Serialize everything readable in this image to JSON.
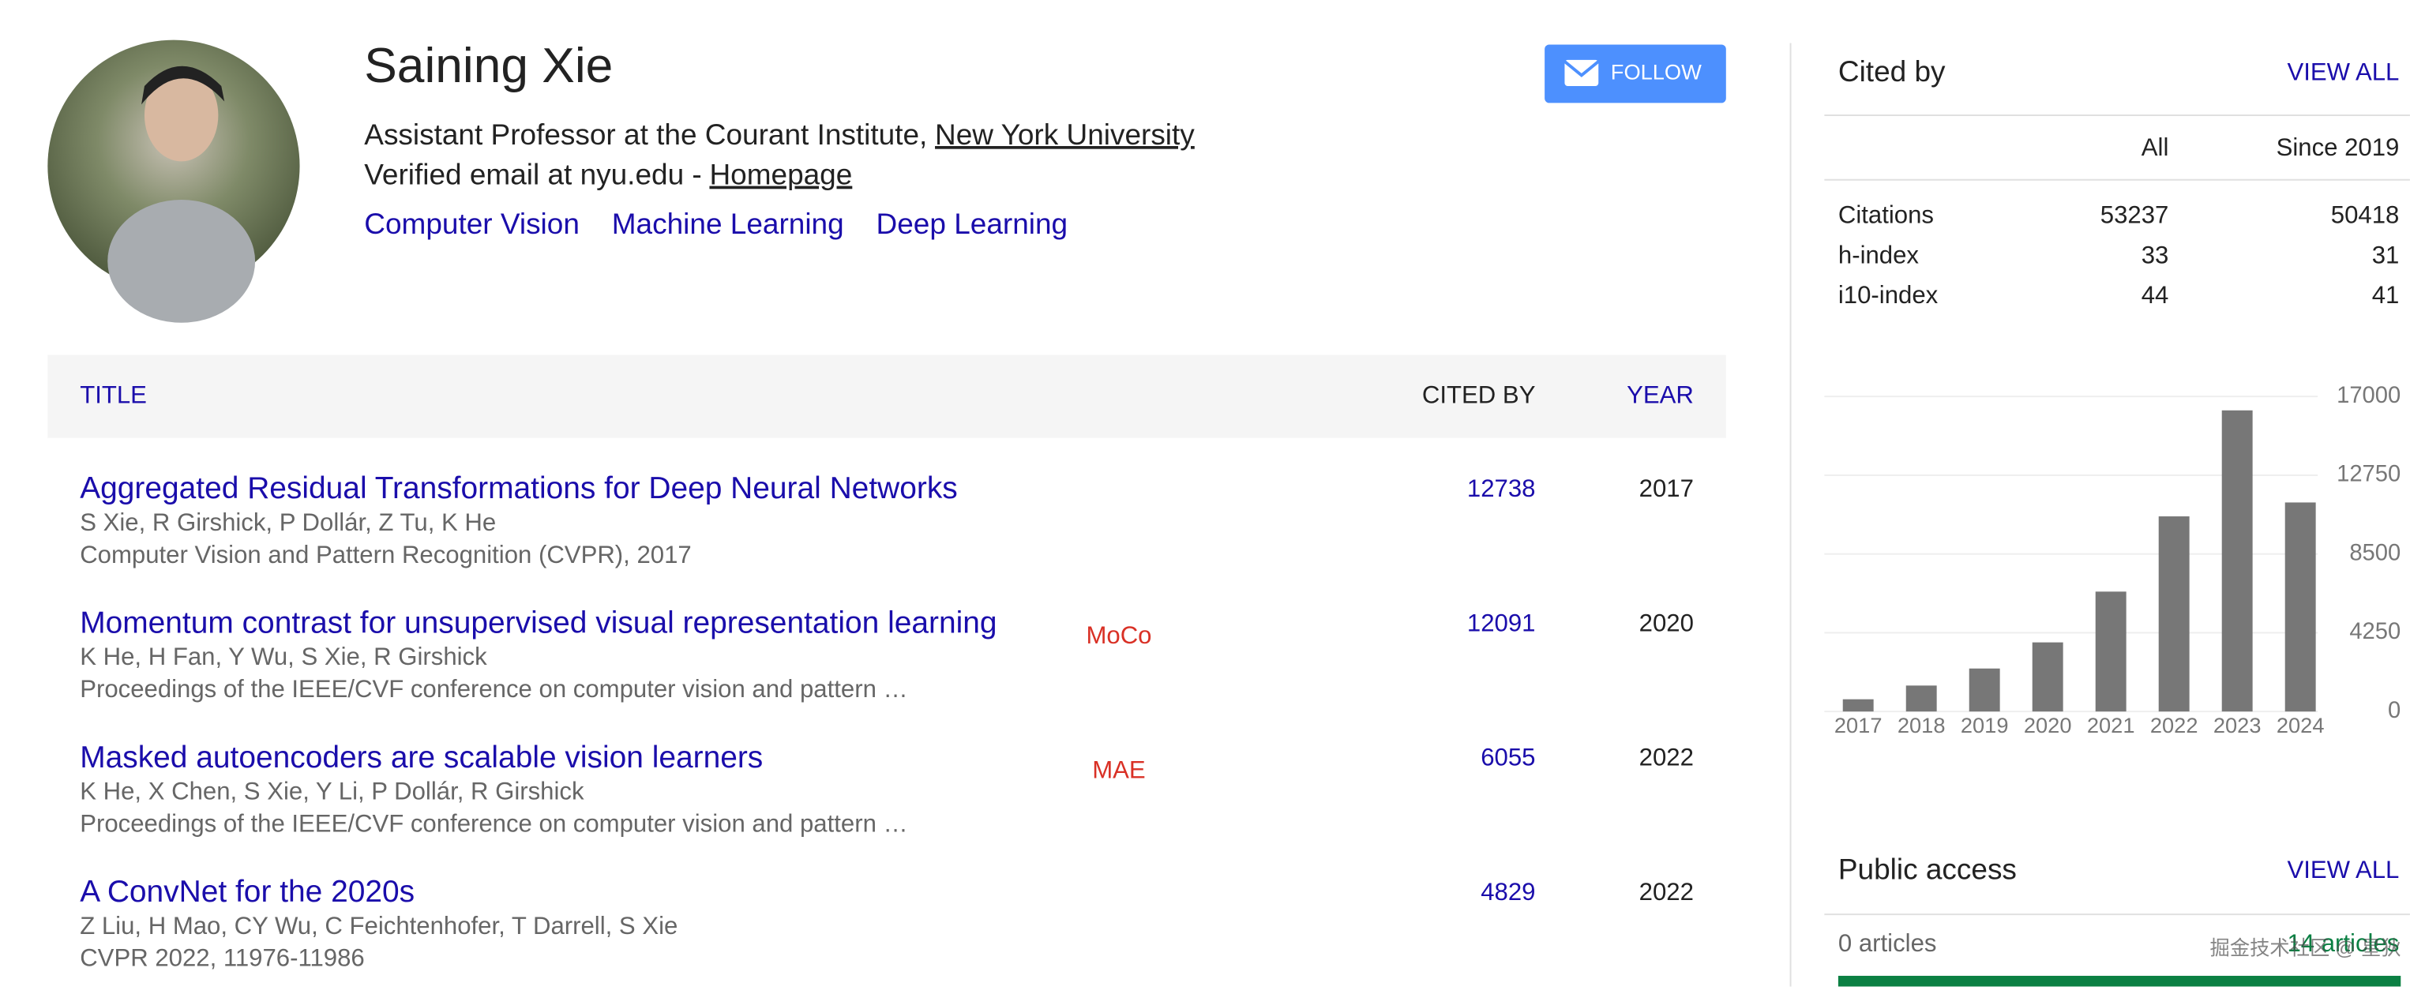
{
  "profile": {
    "name": "Saining Xie",
    "affiliation": "Assistant Professor at the Courant Institute,",
    "institution": "New York University",
    "email": "Verified email at nyu.edu -",
    "homepage": "Homepage",
    "interests": [
      "Computer Vision",
      "Machine Learning",
      "Deep Learning"
    ],
    "follow": "FOLLOW"
  },
  "table": {
    "headers": {
      "title": "TITLE",
      "cited_by": "CITED BY",
      "year": "YEAR"
    },
    "rows": [
      {
        "title": "Aggregated Residual Transformations for Deep Neural Networks",
        "authors": "S Xie, R Girshick, P Dollár, Z Tu, K He",
        "venue": "Computer Vision and Pattern Recognition (CVPR), 2017",
        "cited_by": 12738,
        "year": 2017
      },
      {
        "title": "Momentum contrast for unsupervised visual representation learning",
        "tag": "MoCo",
        "authors": "K He, H Fan, Y Wu, S Xie, R Girshick",
        "venue": "Proceedings of the IEEE/CVF conference on computer vision and pattern …",
        "cited_by": 12091,
        "year": 2020
      },
      {
        "title": "Masked autoencoders are scalable vision learners",
        "tag": "MAE",
        "authors": "K He, X Chen, S Xie, Y Li, P Dollár, R Girshick",
        "venue": "Proceedings of the IEEE/CVF conference on computer vision and pattern …",
        "cited_by": 6055,
        "year": 2022
      },
      {
        "title": "A ConvNet for the 2020s",
        "authors": "Z Liu, H Mao, CY Wu, C Feichtenhofer, T Darrell, S Xie",
        "venue": "CVPR 2022, 11976-11986",
        "cited_by": 4829,
        "year": 2022
      }
    ]
  },
  "cited_by": {
    "title": "Cited by",
    "view_all": "VIEW ALL",
    "columns": [
      "All",
      "Since 2019"
    ],
    "rows": [
      {
        "label": "Citations",
        "all": 53237,
        "since": 50418
      },
      {
        "label": "h-index",
        "all": 33,
        "since": 31
      },
      {
        "label": "i10-index",
        "all": 44,
        "since": 41
      }
    ]
  },
  "citation_chart": {
    "type": "bar",
    "categories": [
      "2017",
      "2018",
      "2019",
      "2020",
      "2021",
      "2022",
      "2023",
      "2024"
    ],
    "values": [
      660,
      1400,
      2320,
      3730,
      6470,
      10530,
      16250,
      11280
    ],
    "color": "#777777",
    "ylim": [
      0,
      17000
    ],
    "yticks": [
      0,
      4250,
      8500,
      12750,
      17000
    ],
    "grid": true
  },
  "public_access": {
    "title": "Public access",
    "view_all": "VIEW ALL",
    "unavailable": "0 articles",
    "available": "14 articles"
  },
  "watermark": "掘金技术社区 @ 星狄"
}
